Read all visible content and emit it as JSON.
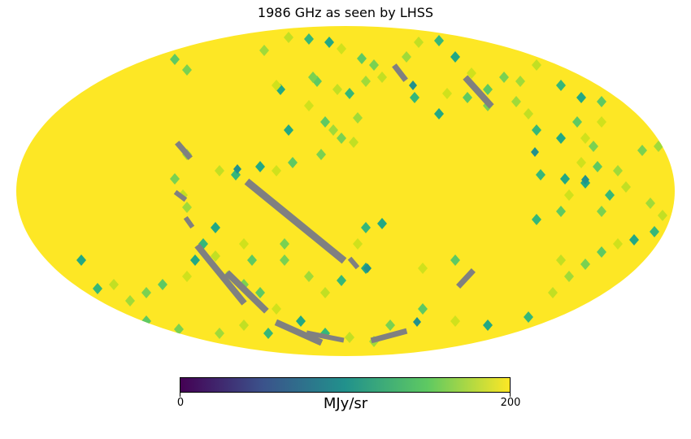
{
  "title": "1986 GHz as seen by LHSS",
  "projection": "mollweide",
  "colorbar": {
    "min_label": "0",
    "max_label": "200",
    "units": "MJy/sr",
    "colormap": "viridis",
    "stops": [
      "#440154",
      "#3b528b",
      "#21918c",
      "#5ec962",
      "#fde725"
    ]
  },
  "colors": {
    "background_map": "#fde725",
    "no_data": "#808080"
  }
}
